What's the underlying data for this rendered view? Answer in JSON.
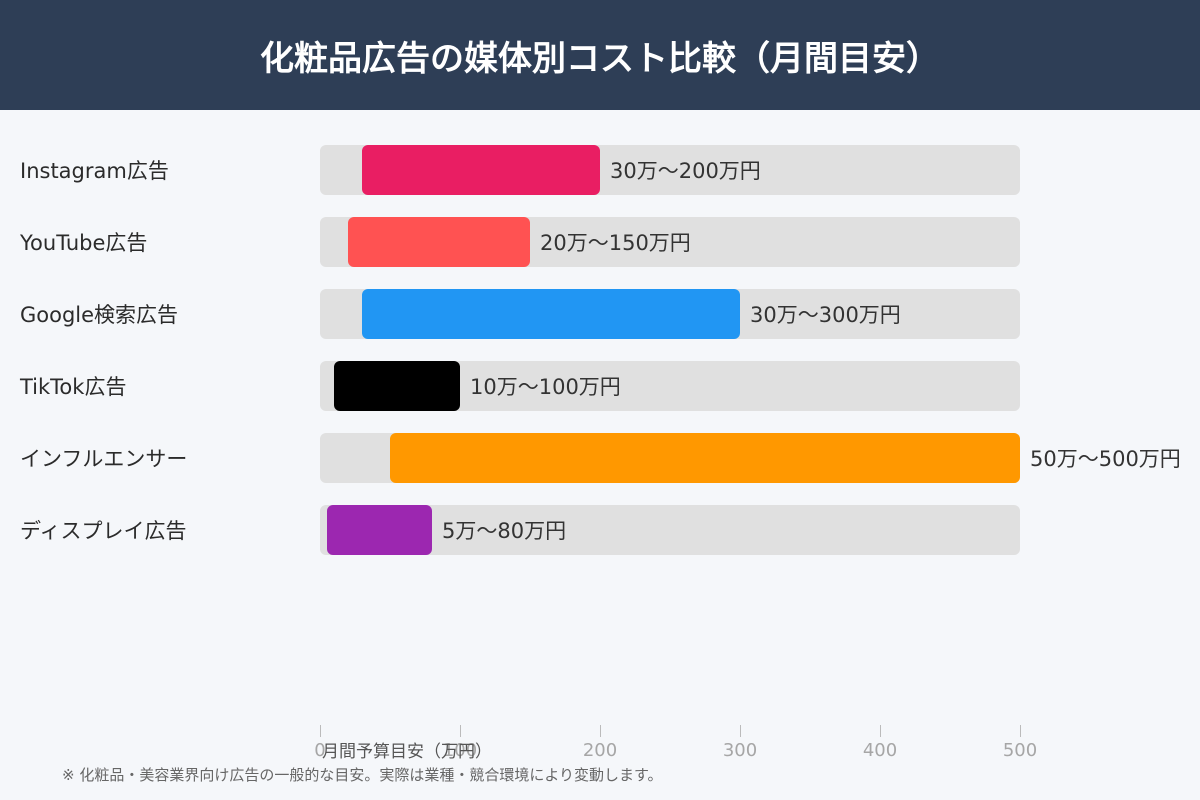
{
  "header": {
    "title": "化粧品広告の媒体別コスト比較（月間目安）"
  },
  "chart_data": {
    "type": "bar",
    "orientation": "horizontal",
    "subtype": "range (floating bars)",
    "title": "化粧品広告の媒体別コスト比較（月間目安）",
    "xlabel": "月間予算目安（万円）",
    "ylabel": "",
    "xlim": [
      0,
      500
    ],
    "xticks": [
      0,
      100,
      200,
      300,
      400,
      500
    ],
    "grid": false,
    "legend": null,
    "categories": [
      "Instagram広告",
      "YouTube広告",
      "Google検索広告",
      "TikTok広告",
      "インフルエンサー",
      "ディスプレイ広告"
    ],
    "series": [
      {
        "name": "min",
        "values": [
          30,
          20,
          30,
          10,
          50,
          5
        ]
      },
      {
        "name": "max",
        "values": [
          200,
          150,
          300,
          100,
          500,
          80
        ]
      }
    ],
    "value_labels": [
      "30万〜200万円",
      "20万〜150万円",
      "30万〜300万円",
      "10万〜100万円",
      "50万〜500万円",
      "5万〜80万円"
    ],
    "colors": [
      "#e91e63",
      "#ff5252",
      "#2196f3",
      "#000000",
      "#ff9800",
      "#9c27b0"
    ],
    "footnote": "※ 化粧品・美容業界向け広告の一般的な目安。実際は業種・競合環境により変動します。"
  },
  "rows": [
    {
      "label": "Instagram広告",
      "min": 30,
      "max": 200,
      "value_label": "30万〜200万円",
      "color": "#e91e63"
    },
    {
      "label": "YouTube広告",
      "min": 20,
      "max": 150,
      "value_label": "20万〜150万円",
      "color": "#ff5252"
    },
    {
      "label": "Google検索広告",
      "min": 30,
      "max": 300,
      "value_label": "30万〜300万円",
      "color": "#2196f3"
    },
    {
      "label": "TikTok広告",
      "min": 10,
      "max": 100,
      "value_label": "10万〜100万円",
      "color": "#000000"
    },
    {
      "label": "インフルエンサー",
      "min": 50,
      "max": 500,
      "value_label": "50万〜500万円",
      "color": "#ff9800"
    },
    {
      "label": "ディスプレイ広告",
      "min": 5,
      "max": 80,
      "value_label": "5万〜80万円",
      "color": "#9c27b0"
    }
  ],
  "axis": {
    "title": "月間予算目安（万円）",
    "ticks": [
      "0",
      "100",
      "200",
      "300",
      "400",
      "500"
    ]
  },
  "footnote": "※ 化粧品・美容業界向け広告の一般的な目安。実際は業種・競合環境により変動します。"
}
